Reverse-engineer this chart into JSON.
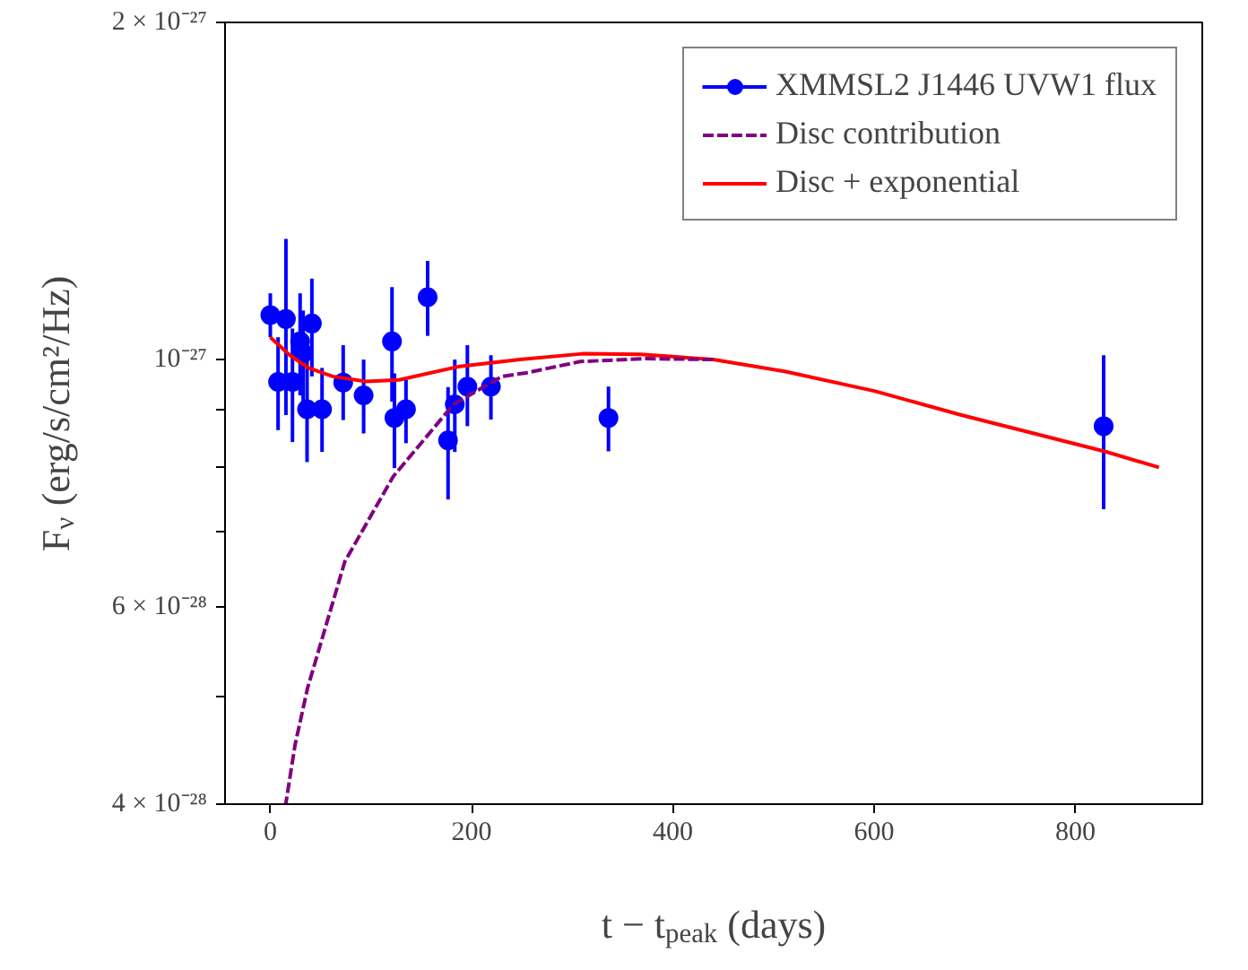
{
  "chart_data": {
    "type": "line",
    "xlabel": "t − t$_{peak}$ (days)",
    "ylabel": "F$_{ν}$ (erg/s/cm²/Hz)",
    "xlim": [
      -45,
      926
    ],
    "xticks": [
      0,
      200,
      400,
      600,
      800
    ],
    "ylim": [
      4e-28,
      2e-27
    ],
    "log": "y",
    "yticks": [
      {
        "value": 2e-27,
        "label": "2 × 10⁻²⁷"
      },
      {
        "value": 1e-27,
        "label": "10⁻²⁷"
      },
      {
        "value": 9e-28,
        "label": null
      },
      {
        "value": 8e-28,
        "label": null
      },
      {
        "value": 7e-28,
        "label": null
      },
      {
        "value": 6e-28,
        "label": "6 × 10⁻²⁸"
      },
      {
        "value": 5e-28,
        "label": null
      },
      {
        "value": 4e-28,
        "label": "4 × 10⁻²⁸"
      }
    ],
    "grid": false,
    "legend": "top right",
    "series": [
      {
        "name": "XMMSL2 J1446 UVW1 flux",
        "type": "scatter",
        "marker": "circle",
        "color": "#0000ff",
        "x": [
          0,
          7.7,
          15.5,
          22,
          29.6,
          32.6,
          36.5,
          41.3,
          51.4,
          72.4,
          92.7,
          120.9,
          123.3,
          134.8,
          156.3,
          176.6,
          183.3,
          195.8,
          219.2,
          336,
          828
        ],
        "values": [
          1.095e-27,
          9.54e-28,
          1.086e-27,
          9.54e-28,
          1.037e-27,
          1.012e-27,
          9.02e-28,
          1.076e-27,
          9.02e-28,
          9.53e-28,
          9.28e-28,
          1.037e-27,
          8.86e-28,
          9.02e-28,
          1.136e-27,
          8.46e-28,
          9.11e-28,
          9.45e-28,
          9.45e-28,
          8.86e-28,
          8.71e-28
        ],
        "errors": [
          [
            1.046e-27,
            1.145e-27
          ],
          [
            8.64e-28,
            1.046e-27
          ],
          [
            8.91e-28,
            1.281e-27
          ],
          [
            8.43e-28,
            1.065e-27
          ],
          [
            9.28e-28,
            1.145e-27
          ],
          [
            8.91e-28,
            1.105e-27
          ],
          [
            8.09e-28,
            9.99e-28
          ],
          [
            9.65e-28,
            1.18e-27
          ],
          [
            8.26e-28,
            9.82e-28
          ],
          [
            8.82e-28,
            1.029e-27
          ],
          [
            8.58e-28,
            9.99e-28
          ],
          [
            9.16e-28,
            1.16e-27
          ],
          [
            7.99e-28,
            9.71e-28
          ],
          [
            8.41e-28,
            9.61e-28
          ],
          [
            1.049e-27,
            1.224e-27
          ],
          [
            7.49e-28,
            9.44e-28
          ],
          [
            8.26e-28,
            9.99e-28
          ],
          [
            8.71e-28,
            1.029e-27
          ],
          [
            8.83e-28,
            1.008e-27
          ],
          [
            8.27e-28,
            9.45e-28
          ],
          [
            7.34e-28,
            1.008e-27
          ]
        ]
      },
      {
        "name": "Disc contribution",
        "type": "line",
        "line_style": "dashed",
        "color": "#800080",
        "x": [
          15.3,
          24.6,
          37,
          74,
          122,
          182,
          230,
          254,
          308,
          374,
          440
        ],
        "values": [
          4e-28,
          4.52e-28,
          5.08e-28,
          6.59e-28,
          7.85e-28,
          9.11e-28,
          9.65e-28,
          9.72e-28,
          9.95e-28,
          1.001e-27,
          9.99e-28
        ]
      },
      {
        "name": "Disc + exponential",
        "line_style": "solid",
        "color": "#ff0000",
        "x": [
          0,
          20,
          38,
          62,
          95,
          128,
          188,
          248,
          310,
          368,
          440,
          511,
          601,
          685,
          829,
          883
        ],
        "values": [
          1.046e-27,
          1.007e-27,
          9.82e-28,
          9.65e-28,
          9.55e-28,
          9.58e-28,
          9.85e-28,
          9.99e-28,
          1.011e-27,
          1.01e-27,
          9.99e-28,
          9.75e-28,
          9.36e-28,
          8.92e-28,
          8.27e-28,
          8e-28
        ]
      }
    ]
  }
}
